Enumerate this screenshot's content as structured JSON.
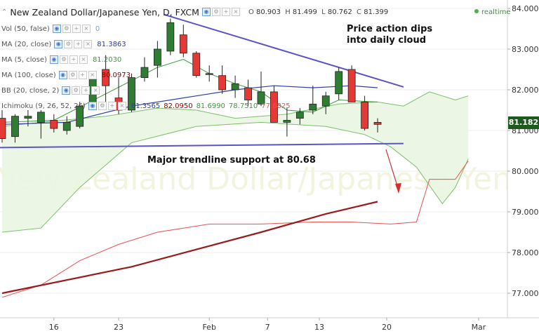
{
  "header": {
    "title": "New Zealand Dollar/Japanese Yen, D, FXCM",
    "ohlc": {
      "o_label": "O",
      "o": "80.903",
      "h_label": "H",
      "h": "81.499",
      "l_label": "L",
      "l": "80.762",
      "c_label": "C",
      "c": "81.399"
    },
    "realtime": "realtime"
  },
  "indicators": [
    {
      "label": "Vol (50, false)",
      "value": "0",
      "color": "#7aa7d6"
    },
    {
      "label": "MA (20, close)",
      "value": "81.3863",
      "color": "#2b3fa6"
    },
    {
      "label": "MA (5, close)",
      "value": "81.2030",
      "color": "#3c9a3c"
    },
    {
      "label": "MA (100, close)",
      "value": "80.0973",
      "color": "#8b0000"
    },
    {
      "label": "BB (20, close, 2)",
      "value": "",
      "color": "#2b3fa6"
    },
    {
      "label": "Ichimoku (9, 26, 52, 26)",
      "values": [
        "81.3565",
        "82.0950",
        "81.6990",
        "78.7510",
        "77.6825"
      ],
      "colors": [
        "#2b3fa6",
        "#8b0000",
        "#3c9a3c",
        "#3c9a3c",
        "#e85050"
      ]
    }
  ],
  "annotations": {
    "cloud": "Price action dips\ninto daily cloud",
    "support": "Major trendline support at 80.68"
  },
  "price_tag": "81.182",
  "watermark": "New Zealand Dollar/Japanese Yen",
  "colors": {
    "up": "#2e7d32",
    "down": "#e53935",
    "cloud": "#e9f5e1",
    "cloud_edge": "#7cbf6a",
    "trendline": "#5b54c8",
    "ma100": "#9b1b1b",
    "ma20": "#2b3fa6",
    "ma5": "#3c9a3c",
    "lagging": "#e85050",
    "arrow": "#d32f2f"
  },
  "chart_data": {
    "type": "candlestick",
    "symbol": "NZD/JPY",
    "timeframe": "D",
    "ylim": [
      76.6,
      84.1
    ],
    "y_ticks": [
      "84.000",
      "83.000",
      "82.000",
      "81.000",
      "80.000",
      "79.000",
      "78.000",
      "77.000"
    ],
    "x_ticks": [
      "16",
      "23",
      "Feb",
      "7",
      "13",
      "20",
      "Mar"
    ],
    "candles": [
      {
        "o": 81.3,
        "h": 81.5,
        "l": 80.7,
        "c": 80.8
      },
      {
        "o": 80.85,
        "h": 81.4,
        "l": 80.7,
        "c": 81.35
      },
      {
        "o": 81.3,
        "h": 81.5,
        "l": 81.1,
        "c": 81.35
      },
      {
        "o": 81.2,
        "h": 81.5,
        "l": 80.8,
        "c": 81.45
      },
      {
        "o": 81.25,
        "h": 81.4,
        "l": 80.95,
        "c": 81.05
      },
      {
        "o": 81.0,
        "h": 81.35,
        "l": 80.9,
        "c": 81.2
      },
      {
        "o": 81.1,
        "h": 81.7,
        "l": 81.05,
        "c": 81.6
      },
      {
        "o": 81.6,
        "h": 82.35,
        "l": 81.5,
        "c": 82.3
      },
      {
        "o": 82.5,
        "h": 82.85,
        "l": 81.7,
        "c": 82.1
      },
      {
        "o": 81.8,
        "h": 82.3,
        "l": 81.4,
        "c": 81.5
      },
      {
        "o": 81.5,
        "h": 82.4,
        "l": 81.45,
        "c": 82.3
      },
      {
        "o": 82.3,
        "h": 82.8,
        "l": 82.2,
        "c": 82.55
      },
      {
        "o": 82.6,
        "h": 83.2,
        "l": 82.3,
        "c": 83.0
      },
      {
        "o": 82.95,
        "h": 83.75,
        "l": 82.85,
        "c": 83.65
      },
      {
        "o": 83.35,
        "h": 83.6,
        "l": 82.8,
        "c": 82.9
      },
      {
        "o": 82.9,
        "h": 82.95,
        "l": 82.3,
        "c": 82.35
      },
      {
        "o": 82.4,
        "h": 82.6,
        "l": 82.2,
        "c": 82.4
      },
      {
        "o": 82.35,
        "h": 82.6,
        "l": 81.9,
        "c": 82.0
      },
      {
        "o": 82.0,
        "h": 82.35,
        "l": 81.8,
        "c": 82.15
      },
      {
        "o": 82.05,
        "h": 82.25,
        "l": 81.6,
        "c": 81.75
      },
      {
        "o": 81.65,
        "h": 82.45,
        "l": 81.6,
        "c": 81.95
      },
      {
        "o": 81.95,
        "h": 82.1,
        "l": 81.2,
        "c": 81.2
      },
      {
        "o": 81.2,
        "h": 81.55,
        "l": 80.85,
        "c": 81.25
      },
      {
        "o": 81.3,
        "h": 81.55,
        "l": 81.15,
        "c": 81.45
      },
      {
        "o": 81.5,
        "h": 82.1,
        "l": 81.4,
        "c": 81.65
      },
      {
        "o": 81.6,
        "h": 81.95,
        "l": 81.4,
        "c": 81.85
      },
      {
        "o": 81.9,
        "h": 82.55,
        "l": 81.75,
        "c": 82.45
      },
      {
        "o": 82.5,
        "h": 82.6,
        "l": 81.75,
        "c": 81.7
      },
      {
        "o": 81.7,
        "h": 81.85,
        "l": 81.0,
        "c": 81.05
      },
      {
        "o": 81.2,
        "h": 81.3,
        "l": 80.95,
        "c": 81.15
      }
    ],
    "ma100": [
      [
        0,
        77.0
      ],
      [
        10,
        77.65
      ],
      [
        20,
        78.5
      ],
      [
        25,
        78.95
      ],
      [
        29,
        79.25
      ]
    ],
    "ma20": [
      [
        0,
        81.15
      ],
      [
        5,
        81.2
      ],
      [
        10,
        81.6
      ],
      [
        15,
        81.85
      ],
      [
        18,
        82.0
      ],
      [
        21,
        82.1
      ],
      [
        24,
        82.05
      ],
      [
        27,
        82.1
      ],
      [
        29,
        82.05
      ]
    ],
    "ma5": [
      [
        0,
        81.2
      ],
      [
        4,
        81.25
      ],
      [
        8,
        81.9
      ],
      [
        12,
        82.55
      ],
      [
        14,
        82.75
      ],
      [
        16,
        82.4
      ],
      [
        18,
        82.15
      ],
      [
        20,
        81.95
      ],
      [
        22,
        81.5
      ],
      [
        24,
        81.45
      ],
      [
        26,
        81.75
      ],
      [
        29,
        81.7
      ]
    ],
    "cloud_upper": [
      [
        0,
        81.1
      ],
      [
        3,
        81.2
      ],
      [
        8,
        81.35
      ],
      [
        12,
        81.55
      ],
      [
        15,
        81.5
      ],
      [
        18,
        81.3
      ],
      [
        22,
        81.4
      ],
      [
        26,
        81.65
      ],
      [
        29,
        81.7
      ],
      [
        31,
        81.6
      ],
      [
        33,
        81.95
      ],
      [
        35,
        81.75
      ],
      [
        36,
        81.85
      ]
    ],
    "cloud_lower": [
      [
        0,
        78.5
      ],
      [
        3,
        78.6
      ],
      [
        6,
        79.6
      ],
      [
        10,
        80.7
      ],
      [
        15,
        81.1
      ],
      [
        20,
        81.2
      ],
      [
        25,
        81.1
      ],
      [
        28,
        80.9
      ],
      [
        30,
        80.6
      ],
      [
        32,
        80.1
      ],
      [
        34,
        79.2
      ],
      [
        35,
        79.6
      ],
      [
        36,
        80.3
      ]
    ],
    "lagging_span": [
      [
        0,
        76.9
      ],
      [
        3,
        77.2
      ],
      [
        6,
        77.8
      ],
      [
        9,
        78.2
      ],
      [
        12,
        78.5
      ],
      [
        16,
        78.7
      ],
      [
        20,
        78.7
      ],
      [
        24,
        78.75
      ],
      [
        27,
        78.75
      ],
      [
        30,
        78.7
      ],
      [
        32,
        78.75
      ],
      [
        33,
        79.8
      ],
      [
        35,
        79.8
      ],
      [
        36,
        80.25
      ]
    ],
    "resistance_line": [
      [
        12.5,
        83.85
      ],
      [
        31,
        82.07
      ]
    ],
    "support_line": [
      [
        -0.5,
        80.58
      ],
      [
        31,
        80.68
      ]
    ]
  }
}
